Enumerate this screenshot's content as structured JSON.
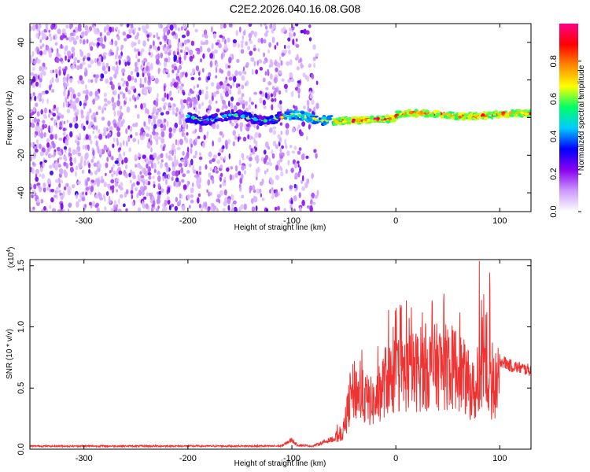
{
  "title": "C2E2.2026.040.16.08.G08",
  "chart_data": [
    {
      "type": "heatmap",
      "name": "spectrogram",
      "xlabel": "Height of straight line (km)",
      "ylabel": "Frequency (Hz)",
      "xlim": [
        -352,
        130
      ],
      "ylim": [
        -50,
        50
      ],
      "xticks": [
        -300,
        -200,
        -100,
        0,
        100
      ],
      "yticks": [
        -40,
        -20,
        0,
        20,
        40
      ],
      "colorbar": {
        "label": "Normalized spectral amplitude",
        "range": [
          0.0,
          1.0
        ],
        "ticks": [
          0.0,
          0.2,
          0.4,
          0.6,
          0.8
        ],
        "colors": [
          "#ffffff",
          "#cc99ff",
          "#8800ee",
          "#0000ff",
          "#00ccff",
          "#00ff66",
          "#ffff00",
          "#ff8800",
          "#ff0000",
          "#ff0088"
        ]
      },
      "features": [
        {
          "region": "x < -75 km",
          "description": "broadband noise across all frequencies (purple speckle, amplitude ~0.1-0.3)"
        },
        {
          "region": "-200 to -75 km",
          "description": "faint signal line near 0 Hz (amplitude ~0.2-0.4)"
        },
        {
          "region": "-75 to 130 km",
          "description": "strong narrow signal line near 0-2 Hz (amplitude ~0.5-0.95)"
        }
      ]
    },
    {
      "type": "line",
      "name": "snr",
      "xlabel": "Height of straight line (km)",
      "ylabel": "SNR (10 * v/v)",
      "yscale_label": "(x10",
      "yscale_exp": "4",
      "xlim": [
        -352,
        130
      ],
      "ylim": [
        0.0,
        1.55
      ],
      "xticks": [
        -300,
        -200,
        -100,
        0,
        100
      ],
      "yticks": [
        0.0,
        0.5,
        1.0,
        1.5
      ],
      "series": [
        {
          "name": "SNR",
          "color": "#ee3333",
          "x": [
            -352,
            -300,
            -200,
            -110,
            -100,
            -95,
            -80,
            -60,
            -50,
            -45,
            -40,
            -30,
            -20,
            -10,
            0,
            20,
            40,
            60,
            70,
            80,
            85,
            90,
            100,
            110,
            130
          ],
          "y": [
            0.03,
            0.03,
            0.03,
            0.03,
            0.09,
            0.04,
            0.03,
            0.1,
            0.2,
            0.5,
            0.65,
            0.55,
            0.5,
            0.75,
            0.8,
            0.85,
            0.9,
            0.88,
            0.7,
            0.55,
            1.3,
            0.6,
            0.75,
            0.7,
            0.66
          ]
        }
      ]
    }
  ]
}
